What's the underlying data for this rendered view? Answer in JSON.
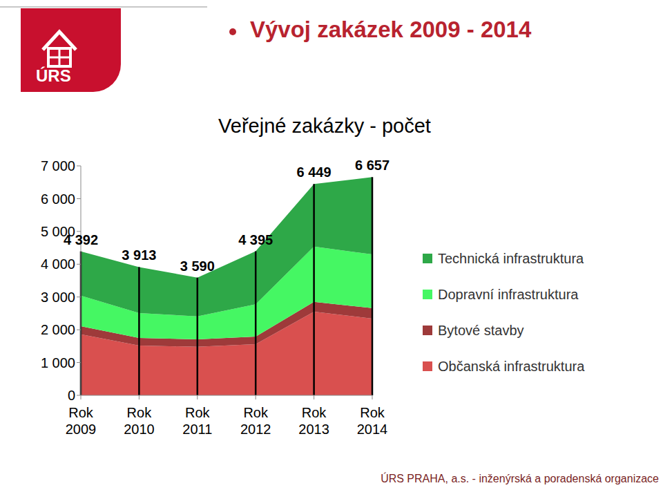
{
  "header": {
    "title": "Vývoj zakázek 2009 - 2014",
    "logo": "ÚRS"
  },
  "footer": "ÚRS PRAHA, a.s. - inženýrská a poradenská organizace",
  "chart_data": {
    "type": "area",
    "title": "Veřejné zakázky - počet",
    "stacked": true,
    "legend": "right",
    "categories": [
      "Rok 2009",
      "Rok 2010",
      "Rok 2011",
      "Rok 2012",
      "Rok 2013",
      "Rok 2014"
    ],
    "series": [
      {
        "name": "Občanská infrastruktura",
        "color": "#d9504f",
        "values": [
          1860,
          1520,
          1480,
          1560,
          2550,
          2340
        ]
      },
      {
        "name": "Bytové stavby",
        "color": "#9e3a3a",
        "values": [
          250,
          230,
          230,
          230,
          300,
          320
        ]
      },
      {
        "name": "Dopravní infrastruktura",
        "color": "#45f763",
        "values": [
          930,
          760,
          700,
          990,
          1690,
          1640
        ]
      },
      {
        "name": "Technická infrastruktura",
        "color": "#2ea848",
        "values": [
          1352,
          1403,
          1180,
          1615,
          1909,
          2357
        ]
      }
    ],
    "totals": {
      "values": [
        4392,
        3913,
        3590,
        4395,
        6449,
        6657
      ],
      "value_labels": [
        "4 392",
        "3 913",
        "3 590",
        "4 395",
        "6 449",
        "6 657"
      ]
    },
    "ylim": [
      0,
      7000
    ],
    "yticks": [
      0,
      {
        "value": 1000,
        "label": "1 000"
      },
      {
        "value": 2000,
        "label": "2 000"
      },
      {
        "value": 3000,
        "label": "3 000"
      },
      {
        "value": 4000,
        "label": "4 000"
      },
      {
        "value": 5000,
        "label": "5 000"
      },
      {
        "value": 6000,
        "label": "6 000"
      },
      {
        "value": 7000,
        "label": "7 000"
      }
    ]
  }
}
